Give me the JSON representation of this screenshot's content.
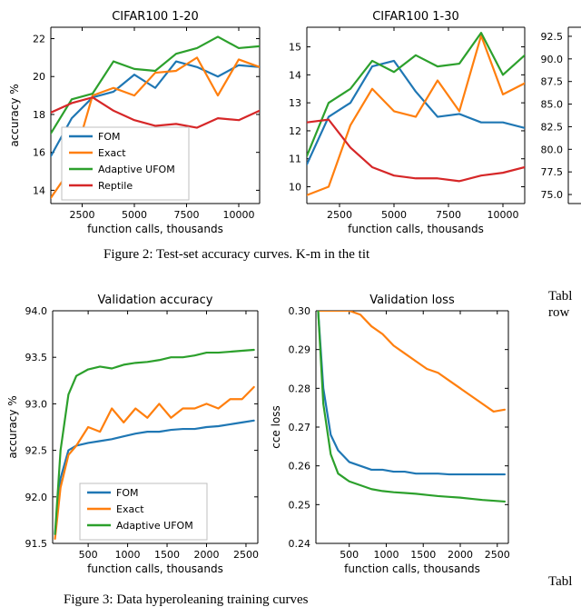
{
  "colors": {
    "fom": "#1f77b4",
    "exact": "#ff7f0e",
    "adaptive": "#2ca02c",
    "reptile": "#d62728",
    "axis": "#000000",
    "text": "#000000",
    "bg": "#ffffff",
    "legend_border": "#bfbfbf"
  },
  "line_width": 2.2,
  "font": {
    "tick": 11,
    "label": 12,
    "title": 13,
    "legend": 11,
    "caption": 14
  },
  "chart_left": {
    "title": "CIFAR100 1-20",
    "xlabel": "function calls, thousands",
    "ylabel": "accuracy %",
    "xlim": [
      1000,
      11000
    ],
    "ylim": [
      13.3,
      22.6
    ],
    "xticks": [
      2500,
      5000,
      7500,
      10000
    ],
    "yticks": [
      14,
      16,
      18,
      20,
      22
    ],
    "x": [
      1000,
      2000,
      3000,
      4000,
      5000,
      6000,
      7000,
      8000,
      9000,
      10000,
      11000
    ],
    "series": [
      {
        "name": "FOM",
        "color": "#1f77b4",
        "y": [
          15.8,
          17.8,
          18.9,
          19.2,
          20.1,
          19.4,
          20.8,
          20.5,
          20.0,
          20.6,
          20.5
        ]
      },
      {
        "name": "Exact",
        "color": "#ff7f0e",
        "y": [
          13.6,
          15.2,
          19.0,
          19.4,
          19.0,
          20.2,
          20.3,
          21.0,
          19.0,
          20.9,
          20.5
        ]
      },
      {
        "name": "Adaptive UFOM",
        "color": "#2ca02c",
        "y": [
          17.0,
          18.8,
          19.1,
          20.8,
          20.4,
          20.3,
          21.2,
          21.5,
          22.1,
          21.5,
          21.6
        ]
      },
      {
        "name": "Reptile",
        "color": "#d62728",
        "y": [
          18.1,
          18.6,
          18.9,
          18.2,
          17.7,
          17.4,
          17.5,
          17.3,
          17.8,
          17.7,
          18.2
        ]
      }
    ],
    "legend": {
      "loc": "lower-right",
      "labels": [
        "FOM",
        "Exact",
        "Adaptive UFOM",
        "Reptile"
      ]
    }
  },
  "chart_mid": {
    "title": "CIFAR100 1-30",
    "xlabel": "function calls, thousands",
    "ylabel": "",
    "xlim": [
      1000,
      11000
    ],
    "ylim": [
      9.4,
      15.7
    ],
    "xticks": [
      2500,
      5000,
      7500,
      10000
    ],
    "yticks": [
      10,
      11,
      12,
      13,
      14,
      15
    ],
    "x": [
      1000,
      2000,
      3000,
      4000,
      5000,
      6000,
      7000,
      8000,
      9000,
      10000,
      11000
    ],
    "series": [
      {
        "name": "FOM",
        "color": "#1f77b4",
        "y": [
          10.8,
          12.5,
          13.0,
          14.3,
          14.5,
          13.4,
          12.5,
          12.6,
          12.3,
          12.3,
          12.1
        ]
      },
      {
        "name": "Exact",
        "color": "#ff7f0e",
        "y": [
          9.7,
          10.0,
          12.2,
          13.5,
          12.7,
          12.5,
          13.8,
          12.7,
          15.4,
          13.3,
          13.7
        ]
      },
      {
        "name": "Adaptive UFOM",
        "color": "#2ca02c",
        "y": [
          11.1,
          13.0,
          13.5,
          14.5,
          14.1,
          14.7,
          14.3,
          14.4,
          15.5,
          14.0,
          14.7
        ]
      },
      {
        "name": "Reptile",
        "color": "#d62728",
        "y": [
          12.3,
          12.4,
          11.4,
          10.7,
          10.4,
          10.3,
          10.3,
          10.2,
          10.4,
          10.5,
          10.7
        ]
      }
    ]
  },
  "right_axis": {
    "ylim": [
      74,
      93.5
    ],
    "yticks": [
      75.0,
      77.5,
      80.0,
      82.5,
      85.0,
      87.5,
      90.0,
      92.5
    ]
  },
  "caption2": "Figure 2: Test-set accuracy curves. K-m in the tit",
  "table_hint": "Tabl",
  "row_hint": "row",
  "chart_va": {
    "title": "Validation accuracy",
    "xlabel": "function calls, thousands",
    "ylabel": "accuracy %",
    "xlim": [
      50,
      2650
    ],
    "ylim": [
      91.5,
      94.0
    ],
    "xticks": [
      500,
      1000,
      1500,
      2000,
      2500
    ],
    "yticks": [
      91.5,
      92.0,
      92.5,
      93.0,
      93.5,
      94.0
    ],
    "x": [
      80,
      150,
      250,
      350,
      500,
      650,
      800,
      950,
      1100,
      1250,
      1400,
      1550,
      1700,
      1850,
      2000,
      2150,
      2300,
      2450,
      2600
    ],
    "series": [
      {
        "name": "FOM",
        "color": "#1f77b4",
        "y": [
          91.6,
          92.2,
          92.5,
          92.55,
          92.58,
          92.6,
          92.62,
          92.65,
          92.68,
          92.7,
          92.7,
          92.72,
          92.73,
          92.73,
          92.75,
          92.76,
          92.78,
          92.8,
          92.82
        ]
      },
      {
        "name": "Exact",
        "color": "#ff7f0e",
        "y": [
          91.55,
          92.1,
          92.45,
          92.55,
          92.75,
          92.7,
          92.95,
          92.8,
          92.95,
          92.85,
          93.0,
          92.85,
          92.95,
          92.95,
          93.0,
          92.95,
          93.05,
          93.05,
          93.18
        ]
      },
      {
        "name": "Adaptive UFOM",
        "color": "#2ca02c",
        "y": [
          91.6,
          92.5,
          93.1,
          93.3,
          93.37,
          93.4,
          93.38,
          93.42,
          93.44,
          93.45,
          93.47,
          93.5,
          93.5,
          93.52,
          93.55,
          93.55,
          93.56,
          93.57,
          93.58
        ]
      }
    ],
    "legend": {
      "labels": [
        "FOM",
        "Exact",
        "Adaptive UFOM"
      ]
    }
  },
  "chart_vl": {
    "title": "Validation loss",
    "xlabel": "function calls, thousands",
    "ylabel": "cce loss",
    "xlim": [
      50,
      2650
    ],
    "ylim": [
      0.24,
      0.3
    ],
    "xticks": [
      500,
      1000,
      1500,
      2000,
      2500
    ],
    "yticks": [
      0.24,
      0.25,
      0.26,
      0.27,
      0.28,
      0.29,
      0.3
    ],
    "x": [
      80,
      150,
      250,
      350,
      500,
      650,
      800,
      950,
      1100,
      1250,
      1400,
      1550,
      1700,
      1850,
      2000,
      2150,
      2300,
      2450,
      2600
    ],
    "series": [
      {
        "name": "FOM",
        "color": "#1f77b4",
        "y": [
          0.3,
          0.28,
          0.268,
          0.264,
          0.261,
          0.26,
          0.259,
          0.259,
          0.2585,
          0.2585,
          0.258,
          0.258,
          0.258,
          0.2578,
          0.2578,
          0.2578,
          0.2578,
          0.2578,
          0.2578
        ]
      },
      {
        "name": "Exact",
        "color": "#ff7f0e",
        "y": [
          0.3,
          0.3,
          0.3,
          0.3,
          0.3,
          0.299,
          0.296,
          0.294,
          0.291,
          0.289,
          0.287,
          0.285,
          0.284,
          0.282,
          0.28,
          0.278,
          0.276,
          0.274,
          0.2745
        ]
      },
      {
        "name": "Adaptive UFOM",
        "color": "#2ca02c",
        "y": [
          0.3,
          0.276,
          0.263,
          0.258,
          0.256,
          0.255,
          0.254,
          0.2535,
          0.2532,
          0.253,
          0.2528,
          0.2525,
          0.2522,
          0.252,
          0.2518,
          0.2515,
          0.2512,
          0.251,
          0.2508
        ]
      }
    ]
  },
  "caption3_partial": "Figure 3: Data hyperoleaning  training curves",
  "table_hint2": "Tabl"
}
